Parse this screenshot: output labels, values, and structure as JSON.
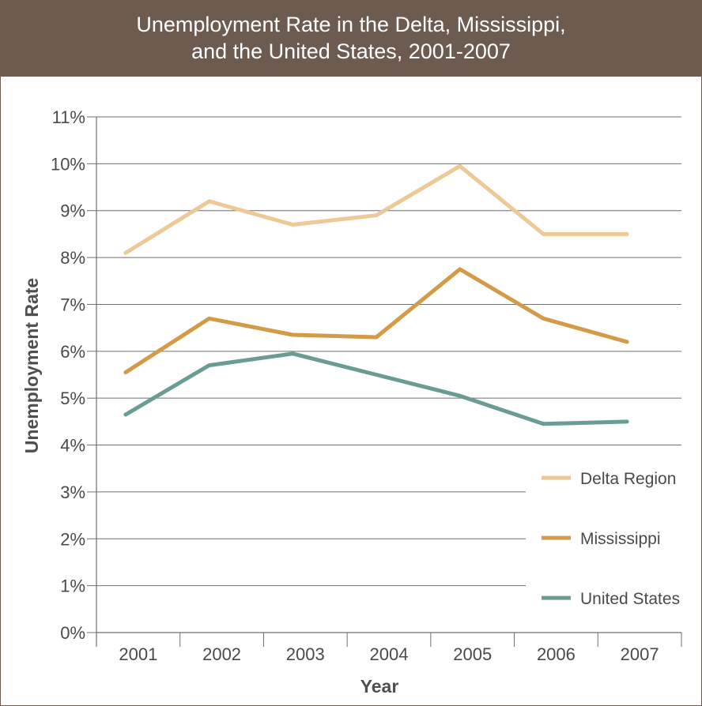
{
  "chart_data": {
    "type": "line",
    "title_lines": [
      "Unemployment Rate in the Delta, Mississippi,",
      "and the United States, 2001-2007"
    ],
    "xlabel": "Year",
    "ylabel": "Unemployment Rate",
    "categories": [
      "2001",
      "2002",
      "2003",
      "2004",
      "2005",
      "2006",
      "2007"
    ],
    "y_tick_labels": [
      "0%",
      "1%",
      "2%",
      "3%",
      "4%",
      "5%",
      "6%",
      "7%",
      "8%",
      "9%",
      "10%",
      "11%"
    ],
    "ylim": [
      0,
      11
    ],
    "grid": "horizontal",
    "legend_position": "right",
    "series": [
      {
        "name": "Delta Region",
        "color": "#ecc996",
        "values": [
          8.1,
          9.2,
          8.7,
          8.9,
          9.95,
          8.5,
          8.5
        ]
      },
      {
        "name": "Mississippi",
        "color": "#d49a47",
        "values": [
          5.55,
          6.7,
          6.35,
          6.3,
          7.75,
          6.7,
          6.2
        ]
      },
      {
        "name": "United States",
        "color": "#6a9c94",
        "values": [
          4.65,
          5.7,
          5.95,
          5.5,
          5.05,
          4.45,
          4.5
        ]
      }
    ]
  }
}
